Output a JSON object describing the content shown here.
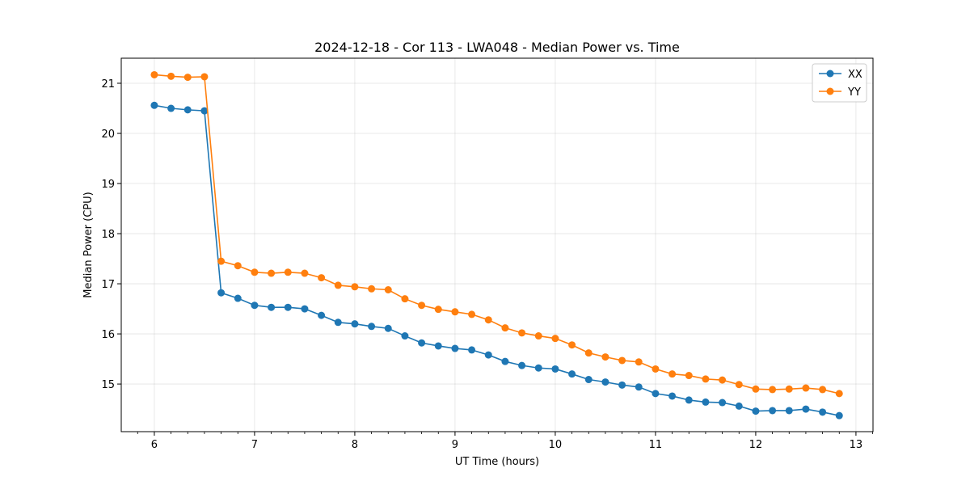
{
  "chart_data": {
    "type": "line",
    "title": "2024-12-18 - Cor 113 - LWA048 - Median Power vs. Time",
    "xlabel": "UT Time (hours)",
    "ylabel": "Median Power (CPU)",
    "xlim": [
      5.67,
      13.17
    ],
    "ylim": [
      14.05,
      21.5
    ],
    "grid": true,
    "legend_position": "top-right",
    "x_ticks": [
      6,
      7,
      8,
      9,
      10,
      11,
      12,
      13
    ],
    "x_tick_labels": [
      "6",
      "7",
      "8",
      "9",
      "10",
      "11",
      "12",
      "13"
    ],
    "y_ticks": [
      15,
      16,
      17,
      18,
      19,
      20,
      21
    ],
    "y_tick_labels": [
      "15",
      "16",
      "17",
      "18",
      "19",
      "20",
      "21"
    ],
    "x": [
      6.0,
      6.1667,
      6.3333,
      6.5,
      6.6667,
      6.8333,
      7.0,
      7.1667,
      7.3333,
      7.5,
      7.6667,
      7.8333,
      8.0,
      8.1667,
      8.3333,
      8.5,
      8.6667,
      8.8333,
      9.0,
      9.1667,
      9.3333,
      9.5,
      9.6667,
      9.8333,
      10.0,
      10.1667,
      10.3333,
      10.5,
      10.6667,
      10.8333,
      11.0,
      11.1667,
      11.3333,
      11.5,
      11.6667,
      11.8333,
      12.0,
      12.1667,
      12.3333,
      12.5,
      12.6667,
      12.8333
    ],
    "series": [
      {
        "name": "XX",
        "color": "#1f77b4",
        "values": [
          20.56,
          20.5,
          20.47,
          20.45,
          16.82,
          16.71,
          16.57,
          16.53,
          16.53,
          16.5,
          16.37,
          16.23,
          16.2,
          16.15,
          16.11,
          15.96,
          15.82,
          15.76,
          15.71,
          15.68,
          15.58,
          15.45,
          15.37,
          15.32,
          15.3,
          15.2,
          15.09,
          15.04,
          14.98,
          14.94,
          14.81,
          14.76,
          14.68,
          14.64,
          14.63,
          14.56,
          14.46,
          14.47,
          14.47,
          14.5,
          14.44,
          14.37
        ]
      },
      {
        "name": "YY",
        "color": "#ff7f0e",
        "values": [
          21.17,
          21.14,
          21.12,
          21.13,
          17.45,
          17.36,
          17.23,
          17.21,
          17.23,
          17.21,
          17.12,
          16.97,
          16.94,
          16.9,
          16.88,
          16.7,
          16.57,
          16.49,
          16.44,
          16.39,
          16.28,
          16.12,
          16.02,
          15.96,
          15.91,
          15.78,
          15.62,
          15.54,
          15.47,
          15.44,
          15.3,
          15.2,
          15.17,
          15.1,
          15.08,
          14.99,
          14.9,
          14.89,
          14.9,
          14.92,
          14.89,
          14.81
        ]
      }
    ]
  }
}
